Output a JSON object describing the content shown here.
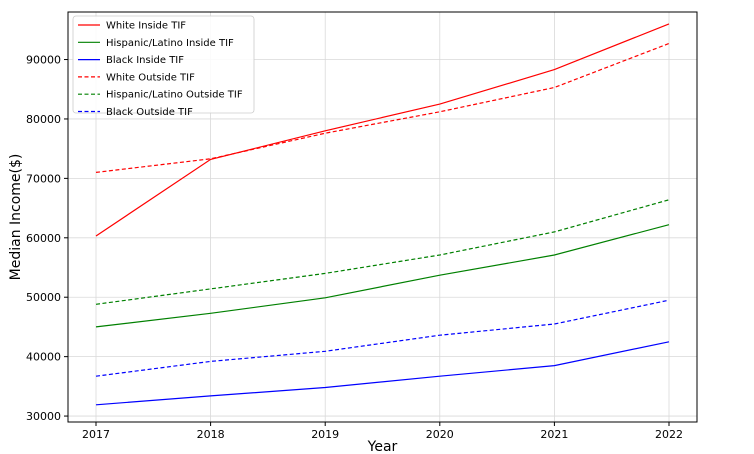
{
  "chart_data": {
    "type": "line",
    "title": "",
    "xlabel": "Year",
    "ylabel": "Median Income($)",
    "x": [
      2017,
      2018,
      2019,
      2020,
      2021,
      2022
    ],
    "x_ticks": [
      "2017",
      "2018",
      "2019",
      "2020",
      "2021",
      "2022"
    ],
    "ylim": [
      29000,
      98000
    ],
    "y_ticks": [
      30000,
      40000,
      50000,
      60000,
      70000,
      80000,
      90000
    ],
    "y_tick_labels": [
      "30000",
      "40000",
      "50000",
      "60000",
      "70000",
      "80000",
      "90000"
    ],
    "grid": true,
    "legend_position": "upper-left",
    "series": [
      {
        "name": "White Inside TIF",
        "color": "#ff0000",
        "style": "solid",
        "values": [
          60300,
          73200,
          78000,
          82500,
          88300,
          96000
        ]
      },
      {
        "name": "Hispanic/Latino Inside TIF",
        "color": "#008000",
        "style": "solid",
        "values": [
          45000,
          47300,
          49900,
          53700,
          57100,
          62200
        ]
      },
      {
        "name": "Black Inside TIF",
        "color": "#0000ff",
        "style": "solid",
        "values": [
          31900,
          33400,
          34800,
          36700,
          38500,
          42500
        ]
      },
      {
        "name": "White Outside TIF",
        "color": "#ff0000",
        "style": "dashed",
        "values": [
          71000,
          73300,
          77600,
          81200,
          85300,
          92700
        ]
      },
      {
        "name": "Hispanic/Latino Outside TIF",
        "color": "#008000",
        "style": "dashed",
        "values": [
          48800,
          51400,
          54000,
          57100,
          61000,
          66400
        ]
      },
      {
        "name": "Black Outside TIF",
        "color": "#0000ff",
        "style": "dashed",
        "values": [
          36700,
          39200,
          40900,
          43600,
          45500,
          49500
        ]
      }
    ]
  }
}
